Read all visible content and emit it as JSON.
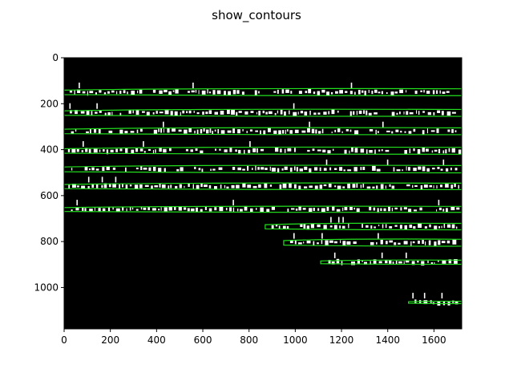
{
  "chart_data": {
    "type": "image",
    "title": "show_contours",
    "xlim": [
      0,
      1720
    ],
    "ylim": [
      1180,
      0
    ],
    "x_ticks": [
      0,
      200,
      400,
      600,
      800,
      1000,
      1200,
      1400,
      1600
    ],
    "y_ticks": [
      0,
      200,
      400,
      600,
      800,
      1000
    ],
    "background": "#000000",
    "contour_color": "#22e01e",
    "ink_color": "#ffffff",
    "contours": [
      {
        "x0": 0,
        "x1": 1720,
        "yc": 150,
        "h": 30
      },
      {
        "x0": 0,
        "x1": 1720,
        "yc": 240,
        "h": 30
      },
      {
        "x0": 0,
        "x1": 1720,
        "yc": 320,
        "h": 30
      },
      {
        "x0": 0,
        "x1": 1720,
        "yc": 405,
        "h": 30
      },
      {
        "x0": 0,
        "x1": 1720,
        "yc": 485,
        "h": 32
      },
      {
        "x0": 0,
        "x1": 1720,
        "yc": 560,
        "h": 28
      },
      {
        "x0": 0,
        "x1": 1720,
        "yc": 660,
        "h": 26
      },
      {
        "x0": 870,
        "x1": 1720,
        "yc": 735,
        "h": 28
      },
      {
        "x0": 950,
        "x1": 1720,
        "yc": 805,
        "h": 30
      },
      {
        "x0": 1110,
        "x1": 1720,
        "yc": 890,
        "h": 18
      },
      {
        "x0": 1490,
        "x1": 1720,
        "yc": 1065,
        "h": 10
      }
    ]
  }
}
